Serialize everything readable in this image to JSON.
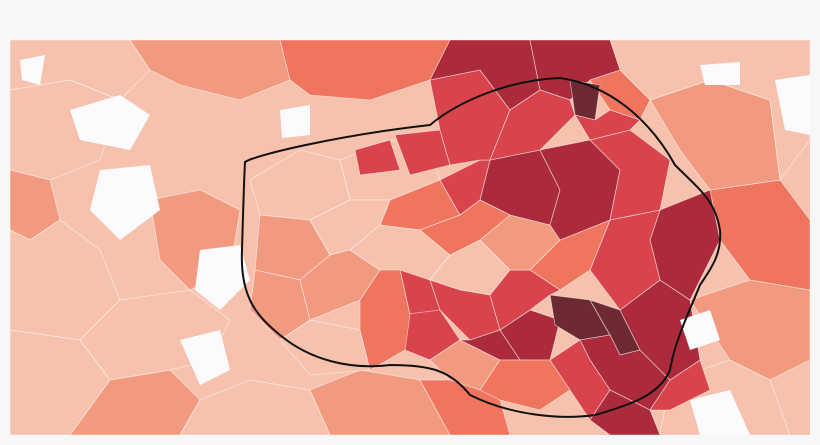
{
  "map": {
    "type": "choropleth",
    "legend": null,
    "colors": {
      "background": "#f7f7f8",
      "no_data": "#fbfbfd",
      "ring_line": "#111111",
      "class_1": "#f6c2ad",
      "class_2": "#f29a80",
      "class_3": "#ef755f",
      "class_4": "#d9434c",
      "class_5": "#ab2a3c",
      "class_6": "#6e2a33"
    },
    "classes": [
      "class_1",
      "class_2",
      "class_3",
      "class_4",
      "class_5",
      "class_6"
    ]
  }
}
